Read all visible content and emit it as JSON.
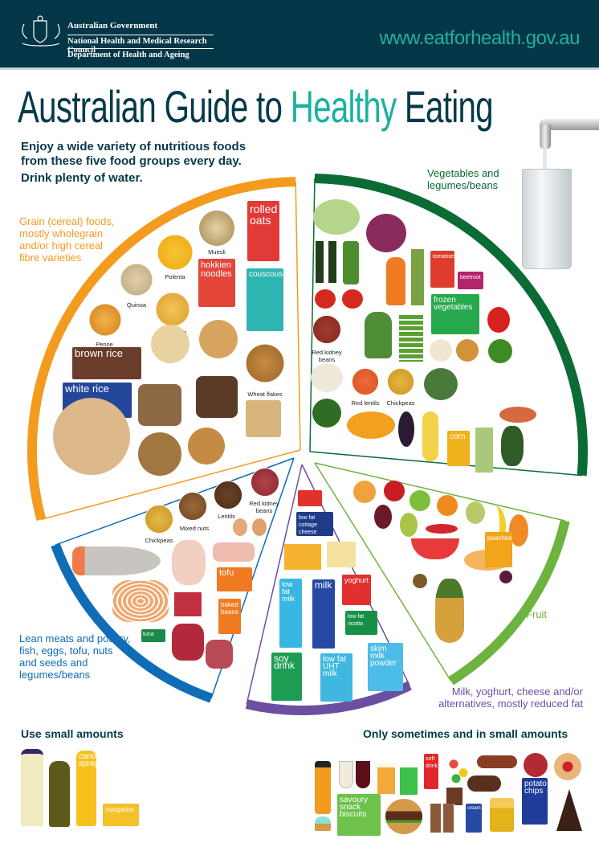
{
  "header": {
    "gov_line1": "Australian Government",
    "gov_line2": "National Health and Medical Research Council",
    "gov_line3": "Department of Health and Ageing",
    "url": "www.eatforhealth.gov.au",
    "bg": "#033747"
  },
  "title": {
    "part1": "Australian Guide to ",
    "highlight": "Healthy",
    "part2": " Eating"
  },
  "intro": {
    "line1": "Enjoy a wide variety of nutritious foods",
    "line2": "from these five food groups every day.",
    "water": "Drink plenty of water."
  },
  "groups": {
    "grain": {
      "label": "Grain (cereal) foods, mostly wholegrain and/or high cereal fibre varieties",
      "color": "#f39b1f",
      "items": {
        "muesli": "Muesli",
        "polenta": "Polenta",
        "quinoa": "Quinoa",
        "fettuccine": "Fettuccine",
        "penne": "Penne",
        "wheat_flakes": "Wheat flakes",
        "rolled_oats": "rolled oats",
        "hokkien": "hokkien noodles",
        "couscous": "couscous",
        "brown_rice": "brown rice",
        "white_rice": "white rice"
      }
    },
    "vegetables": {
      "label": "Vegetables and legumes/beans",
      "color": "#0a6b35",
      "items": {
        "red_kidney": "Red kidney beans",
        "red_lentils": "Red lentils",
        "chickpeas": "Chickpeas",
        "tomatoes": "tomatoes",
        "beetroot": "beetroot",
        "frozen": "frozen vegetables",
        "corn": "corn"
      }
    },
    "fruit": {
      "label": "Fruit",
      "color": "#6db33f",
      "items": {
        "peaches": "peaches"
      }
    },
    "dairy": {
      "label": "Milk, yoghurt, cheese and/or alternatives, mostly reduced fat",
      "color": "#6c4fa0",
      "items": {
        "cottage": "low fat cottage cheese",
        "yoghurt": "yoghurt",
        "ricotta": "low fat ricotta",
        "lowfat_milk": "low fat milk",
        "milk": "milk",
        "soy": "soy drink",
        "uht": "low fat UHT milk",
        "skim": "skim milk powder"
      }
    },
    "protein": {
      "label": "Lean meats and poultry, fish, eggs, tofu, nuts and seeds and legumes/beans",
      "color": "#0f6cb6",
      "items": {
        "chickpeas": "Chickpeas",
        "mixed_nuts": "Mixed nuts",
        "lentils": "Lentils",
        "red_kidney": "Red kidney beans",
        "tofu": "tofu",
        "baked_beans": "baked beans",
        "tuna": "tuna"
      }
    }
  },
  "bottom": {
    "small_amounts": {
      "title": "Use small amounts",
      "canola": "canola spray",
      "margarine": "margarine"
    },
    "sometimes": {
      "title": "Only sometimes and in small amounts",
      "soft_drink": "soft drink",
      "biscuits": "savoury snack biscuits",
      "cream": "cream",
      "chips": "potato chips"
    }
  }
}
